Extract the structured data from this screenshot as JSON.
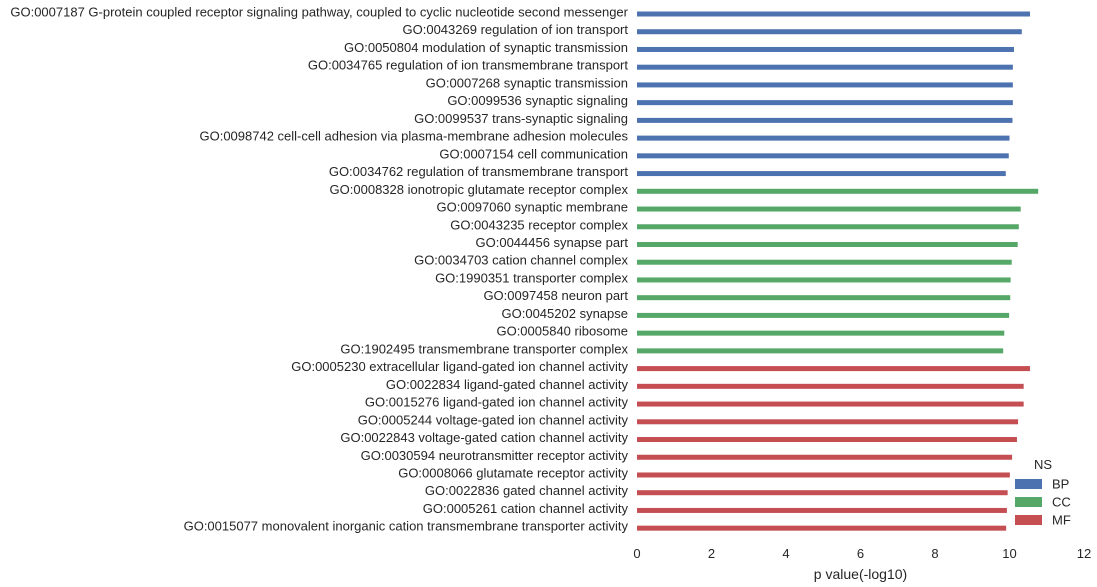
{
  "chart_data": {
    "type": "bar",
    "orientation": "horizontal",
    "title": "",
    "xlabel": "p value(-log10)",
    "ylabel": "",
    "xlim": [
      0,
      12
    ],
    "xticks": [
      "0",
      "2",
      "4",
      "6",
      "8",
      "10",
      "12"
    ],
    "grid": false,
    "legend": {
      "title": "NS",
      "placement": "bottom-right",
      "entries": [
        "BP",
        "CC",
        "MF"
      ]
    },
    "colors": {
      "BP": "#4c72b0",
      "CC": "#55a868",
      "MF": "#c44e52"
    },
    "categories": [
      "GO:0007187 G-protein coupled receptor signaling pathway, coupled to cyclic nucleotide second messenger",
      "GO:0043269 regulation of ion transport",
      "GO:0050804 modulation of synaptic transmission",
      "GO:0034765 regulation of ion transmembrane transport",
      "GO:0007268 synaptic transmission",
      "GO:0099536 synaptic signaling",
      "GO:0099537 trans-synaptic signaling",
      "GO:0098742 cell-cell adhesion via plasma-membrane adhesion molecules",
      "GO:0007154 cell communication",
      "GO:0034762 regulation of transmembrane transport",
      "GO:0008328 ionotropic glutamate receptor complex",
      "GO:0097060 synaptic membrane",
      "GO:0043235 receptor complex",
      "GO:0044456 synapse part",
      "GO:0034703 cation channel complex",
      "GO:1990351 transporter complex",
      "GO:0097458 neuron part",
      "GO:0045202 synapse",
      "GO:0005840 ribosome",
      "GO:1902495 transmembrane transporter complex",
      "GO:0005230 extracellular ligand-gated ion channel activity",
      "GO:0022834 ligand-gated channel activity",
      "GO:0015276 ligand-gated ion channel activity",
      "GO:0005244 voltage-gated ion channel activity",
      "GO:0022843 voltage-gated cation channel activity",
      "GO:0030594 neurotransmitter receptor activity",
      "GO:0008066 glutamate receptor activity",
      "GO:0022836 gated channel activity",
      "GO:0005261 cation channel activity",
      "GO:0015077 monovalent inorganic cation transmembrane transporter activity"
    ],
    "series_of_category": [
      "BP",
      "BP",
      "BP",
      "BP",
      "BP",
      "BP",
      "BP",
      "BP",
      "BP",
      "BP",
      "CC",
      "CC",
      "CC",
      "CC",
      "CC",
      "CC",
      "CC",
      "CC",
      "CC",
      "CC",
      "MF",
      "MF",
      "MF",
      "MF",
      "MF",
      "MF",
      "MF",
      "MF",
      "MF",
      "MF"
    ],
    "values": [
      10.55,
      10.33,
      10.12,
      10.09,
      10.09,
      10.09,
      10.08,
      10.0,
      9.98,
      9.9,
      10.77,
      10.3,
      10.25,
      10.22,
      10.06,
      10.03,
      10.02,
      9.99,
      9.86,
      9.83,
      10.55,
      10.38,
      10.38,
      10.23,
      10.2,
      10.07,
      10.01,
      9.95,
      9.93,
      9.91
    ]
  }
}
